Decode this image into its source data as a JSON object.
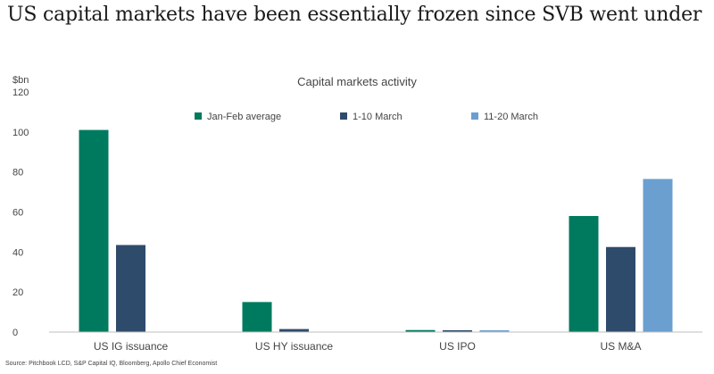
{
  "headline": "US capital markets have been essentially frozen since SVB went under",
  "source": "Source: Pitchbook LCD, S&P Capital IQ, Bloomberg, Apollo Chief Economist",
  "chart_data": {
    "type": "bar",
    "title": "Capital markets activity",
    "ylabel": "$bn",
    "xlabel": "",
    "ylim": [
      0,
      120
    ],
    "yticks": [
      0,
      20,
      40,
      60,
      80,
      100,
      120
    ],
    "grid": false,
    "legend_position": "top",
    "categories": [
      "US IG issuance",
      "US HY issuance",
      "US IPO",
      "US M&A"
    ],
    "series": [
      {
        "name": "Jan-Feb average",
        "color": "#007a5e",
        "values": [
          101,
          15,
          1,
          58
        ]
      },
      {
        "name": "1-10 March",
        "color": "#2f4b6b",
        "values": [
          43.5,
          1.5,
          0.3,
          42.5
        ]
      },
      {
        "name": "11-20 March",
        "color": "#6a9fcf",
        "values": [
          0,
          0,
          0.3,
          76.5
        ]
      }
    ]
  }
}
